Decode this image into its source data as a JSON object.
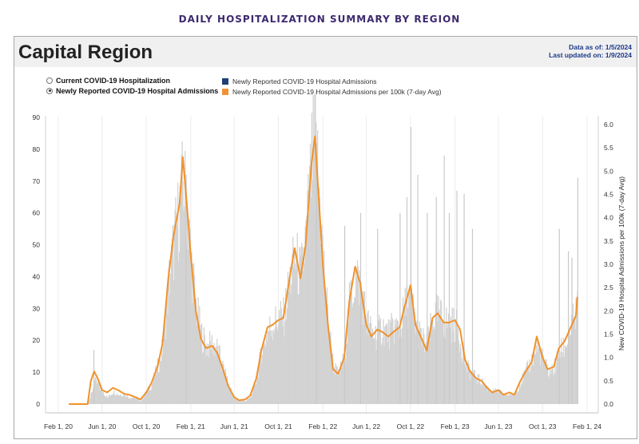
{
  "page": {
    "heading": "DAILY HOSPITALIZATION SUMMARY BY REGION"
  },
  "panel": {
    "title": "Capital Region",
    "data_as_of": "Data as of: 1/5/2024",
    "last_updated": "Last updated on: 1/9/2024"
  },
  "view_options": [
    {
      "label": "Current COVID-19 Hospitalization",
      "selected": false
    },
    {
      "label": "Newly Reported COVID-19 Hospital Admissions",
      "selected": true
    }
  ],
  "legend": [
    {
      "label": "Newly Reported COVID-19 Hospital Admissions",
      "color": "#1f3f7a"
    },
    {
      "label": "Newly Reported COVID-19 Hospital Admissions per 100k (7-day Avg)",
      "color": "#f0923a"
    }
  ],
  "chart_data": {
    "type": "bar+line",
    "x_ticks": [
      "Feb 1, 20",
      "Jun 1, 20",
      "Oct 1, 20",
      "Feb 1, 21",
      "Jun 1, 21",
      "Oct 1, 21",
      "Feb 1, 22",
      "Jun 1, 22",
      "Oct 1, 22",
      "Feb 1, 23",
      "Jun 1, 23",
      "Oct 1, 23",
      "Feb 1, 24"
    ],
    "xlim": [
      "Feb 1, 20",
      "Feb 1, 24"
    ],
    "y_left": {
      "label": "",
      "ylim": [
        0,
        90
      ],
      "ticks": [
        "0",
        "10",
        "20",
        "30",
        "40",
        "50",
        "60",
        "70",
        "80",
        "90"
      ]
    },
    "y_right": {
      "label": "New COVID-19 Hospital Admissions per 100k (7-day Avg)",
      "ylim": [
        0,
        6.0
      ],
      "ticks": [
        "0.0",
        "0.5",
        "1.0",
        "1.5",
        "2.0",
        "2.5",
        "3.0",
        "3.5",
        "4.0",
        "4.5",
        "5.0",
        "5.5",
        "6.0"
      ]
    },
    "grid": "vertical",
    "bar_color": "#d3d3d3",
    "line_color": "#f0922c",
    "series": [
      {
        "name": "Newly Reported COVID-19 Hospital Admissions",
        "axis": "left",
        "points": [
          [
            "2020-03-01",
            0
          ],
          [
            "2020-04-01",
            0
          ],
          [
            "2020-04-20",
            0
          ],
          [
            "2020-05-01",
            3
          ],
          [
            "2020-05-10",
            7
          ],
          [
            "2020-05-20",
            6
          ],
          [
            "2020-06-01",
            4
          ],
          [
            "2020-06-15",
            2
          ],
          [
            "2020-07-01",
            4
          ],
          [
            "2020-07-15",
            3
          ],
          [
            "2020-08-01",
            3
          ],
          [
            "2020-08-15",
            2
          ],
          [
            "2020-09-01",
            2
          ],
          [
            "2020-09-15",
            1
          ],
          [
            "2020-10-01",
            4
          ],
          [
            "2020-10-15",
            6
          ],
          [
            "2020-11-01",
            12
          ],
          [
            "2020-11-15",
            18
          ],
          [
            "2020-12-01",
            38
          ],
          [
            "2020-12-15",
            50
          ],
          [
            "2021-01-01",
            62
          ],
          [
            "2021-01-10",
            70
          ],
          [
            "2021-01-20",
            62
          ],
          [
            "2021-02-01",
            45
          ],
          [
            "2021-02-15",
            30
          ],
          [
            "2021-03-01",
            22
          ],
          [
            "2021-03-15",
            18
          ],
          [
            "2021-04-01",
            19
          ],
          [
            "2021-04-15",
            17
          ],
          [
            "2021-05-01",
            11
          ],
          [
            "2021-05-15",
            6
          ],
          [
            "2021-06-01",
            2
          ],
          [
            "2021-06-15",
            1
          ],
          [
            "2021-07-01",
            1
          ],
          [
            "2021-07-15",
            2
          ],
          [
            "2021-08-01",
            8
          ],
          [
            "2021-08-15",
            17
          ],
          [
            "2021-09-01",
            23
          ],
          [
            "2021-09-15",
            25
          ],
          [
            "2021-10-01",
            27
          ],
          [
            "2021-10-15",
            27
          ],
          [
            "2021-11-01",
            39
          ],
          [
            "2021-11-15",
            46
          ],
          [
            "2021-12-01",
            40
          ],
          [
            "2021-12-15",
            52
          ],
          [
            "2022-01-01",
            76
          ],
          [
            "2022-01-10",
            83
          ],
          [
            "2022-01-20",
            67
          ],
          [
            "2022-02-01",
            45
          ],
          [
            "2022-02-15",
            25
          ],
          [
            "2022-03-01",
            12
          ],
          [
            "2022-03-15",
            9
          ],
          [
            "2022-04-01",
            15
          ],
          [
            "2022-04-15",
            32
          ],
          [
            "2022-05-01",
            40
          ],
          [
            "2022-05-15",
            37
          ],
          [
            "2022-06-01",
            26
          ],
          [
            "2022-06-15",
            22
          ],
          [
            "2022-07-01",
            22
          ],
          [
            "2022-07-15",
            24
          ],
          [
            "2022-08-01",
            22
          ],
          [
            "2022-08-15",
            24
          ],
          [
            "2022-09-01",
            24
          ],
          [
            "2022-09-15",
            30
          ],
          [
            "2022-10-01",
            33
          ],
          [
            "2022-10-15",
            24
          ],
          [
            "2022-11-01",
            20
          ],
          [
            "2022-11-15",
            18
          ],
          [
            "2022-12-01",
            27
          ],
          [
            "2022-12-15",
            28
          ],
          [
            "2023-01-01",
            26
          ],
          [
            "2023-01-15",
            25
          ],
          [
            "2023-02-01",
            25
          ],
          [
            "2023-02-15",
            20
          ],
          [
            "2023-03-01",
            12
          ],
          [
            "2023-03-15",
            10
          ],
          [
            "2023-04-01",
            8
          ],
          [
            "2023-04-15",
            7
          ],
          [
            "2023-05-01",
            5
          ],
          [
            "2023-05-15",
            4
          ],
          [
            "2023-06-01",
            4
          ],
          [
            "2023-06-15",
            3
          ],
          [
            "2023-07-01",
            3
          ],
          [
            "2023-07-15",
            3
          ],
          [
            "2023-08-01",
            7
          ],
          [
            "2023-08-15",
            10
          ],
          [
            "2023-09-01",
            14
          ],
          [
            "2023-09-15",
            18
          ],
          [
            "2023-10-01",
            14
          ],
          [
            "2023-10-15",
            10
          ],
          [
            "2023-11-01",
            11
          ],
          [
            "2023-11-15",
            16
          ],
          [
            "2023-12-01",
            18
          ],
          [
            "2023-12-15",
            23
          ],
          [
            "2024-01-01",
            28
          ],
          [
            "2024-01-05",
            32
          ]
        ],
        "spikes": [
          [
            "2020-05-08",
            17
          ],
          [
            "2021-01-18",
            72
          ],
          [
            "2022-01-13",
            82
          ],
          [
            "2022-04-01",
            56
          ],
          [
            "2022-05-15",
            60
          ],
          [
            "2022-07-01",
            55
          ],
          [
            "2022-09-01",
            60
          ],
          [
            "2022-09-20",
            65
          ],
          [
            "2022-10-01",
            87
          ],
          [
            "2022-10-20",
            72
          ],
          [
            "2022-11-15",
            60
          ],
          [
            "2022-12-10",
            65
          ],
          [
            "2023-01-01",
            78
          ],
          [
            "2023-01-15",
            60
          ],
          [
            "2023-02-05",
            67
          ],
          [
            "2023-02-25",
            66
          ],
          [
            "2023-03-20",
            55
          ],
          [
            "2023-11-15",
            55
          ],
          [
            "2023-12-10",
            48
          ],
          [
            "2023-12-20",
            46
          ],
          [
            "2024-01-05",
            71
          ]
        ]
      },
      {
        "name": "Newly Reported COVID-19 Hospital Admissions per 100k (7-day Avg)",
        "axis": "right",
        "points": [
          [
            "2020-03-01",
            0
          ],
          [
            "2020-04-01",
            0
          ],
          [
            "2020-04-22",
            0
          ],
          [
            "2020-05-01",
            0.5
          ],
          [
            "2020-05-10",
            0.7
          ],
          [
            "2020-05-20",
            0.55
          ],
          [
            "2020-06-01",
            0.3
          ],
          [
            "2020-06-15",
            0.25
          ],
          [
            "2020-07-01",
            0.35
          ],
          [
            "2020-07-15",
            0.3
          ],
          [
            "2020-08-01",
            0.22
          ],
          [
            "2020-08-15",
            0.2
          ],
          [
            "2020-09-01",
            0.15
          ],
          [
            "2020-09-15",
            0.1
          ],
          [
            "2020-10-01",
            0.25
          ],
          [
            "2020-10-15",
            0.45
          ],
          [
            "2020-11-01",
            0.8
          ],
          [
            "2020-11-15",
            1.3
          ],
          [
            "2020-12-01",
            2.7
          ],
          [
            "2020-12-15",
            3.6
          ],
          [
            "2021-01-01",
            4.3
          ],
          [
            "2021-01-10",
            5.3
          ],
          [
            "2021-01-20",
            4.4
          ],
          [
            "2021-02-01",
            3.2
          ],
          [
            "2021-02-15",
            2.0
          ],
          [
            "2021-03-01",
            1.4
          ],
          [
            "2021-03-15",
            1.2
          ],
          [
            "2021-04-01",
            1.25
          ],
          [
            "2021-04-15",
            1.1
          ],
          [
            "2021-05-01",
            0.75
          ],
          [
            "2021-05-15",
            0.4
          ],
          [
            "2021-06-01",
            0.15
          ],
          [
            "2021-06-15",
            0.08
          ],
          [
            "2021-07-01",
            0.1
          ],
          [
            "2021-07-15",
            0.18
          ],
          [
            "2021-08-01",
            0.55
          ],
          [
            "2021-08-15",
            1.15
          ],
          [
            "2021-09-01",
            1.65
          ],
          [
            "2021-09-15",
            1.7
          ],
          [
            "2021-10-01",
            1.8
          ],
          [
            "2021-10-15",
            1.85
          ],
          [
            "2021-11-01",
            2.7
          ],
          [
            "2021-11-15",
            3.35
          ],
          [
            "2021-12-01",
            2.7
          ],
          [
            "2021-12-15",
            3.4
          ],
          [
            "2022-01-01",
            5.2
          ],
          [
            "2022-01-10",
            5.75
          ],
          [
            "2022-01-20",
            4.5
          ],
          [
            "2022-02-01",
            3.0
          ],
          [
            "2022-02-15",
            1.7
          ],
          [
            "2022-03-01",
            0.75
          ],
          [
            "2022-03-15",
            0.65
          ],
          [
            "2022-04-01",
            1.0
          ],
          [
            "2022-04-15",
            2.2
          ],
          [
            "2022-05-01",
            2.95
          ],
          [
            "2022-05-15",
            2.6
          ],
          [
            "2022-06-01",
            1.7
          ],
          [
            "2022-06-15",
            1.45
          ],
          [
            "2022-07-01",
            1.6
          ],
          [
            "2022-07-15",
            1.55
          ],
          [
            "2022-08-01",
            1.45
          ],
          [
            "2022-08-15",
            1.55
          ],
          [
            "2022-09-01",
            1.65
          ],
          [
            "2022-09-15",
            2.1
          ],
          [
            "2022-10-01",
            2.55
          ],
          [
            "2022-10-15",
            1.7
          ],
          [
            "2022-11-01",
            1.4
          ],
          [
            "2022-11-15",
            1.15
          ],
          [
            "2022-12-01",
            1.85
          ],
          [
            "2022-12-15",
            1.95
          ],
          [
            "2023-01-01",
            1.75
          ],
          [
            "2023-01-15",
            1.75
          ],
          [
            "2023-02-01",
            1.8
          ],
          [
            "2023-02-15",
            1.6
          ],
          [
            "2023-03-01",
            0.95
          ],
          [
            "2023-03-15",
            0.7
          ],
          [
            "2023-04-01",
            0.55
          ],
          [
            "2023-04-15",
            0.5
          ],
          [
            "2023-05-01",
            0.35
          ],
          [
            "2023-05-15",
            0.25
          ],
          [
            "2023-06-01",
            0.3
          ],
          [
            "2023-06-15",
            0.2
          ],
          [
            "2023-07-01",
            0.25
          ],
          [
            "2023-07-15",
            0.2
          ],
          [
            "2023-08-01",
            0.5
          ],
          [
            "2023-08-15",
            0.7
          ],
          [
            "2023-09-01",
            0.9
          ],
          [
            "2023-09-15",
            1.45
          ],
          [
            "2023-10-01",
            1.0
          ],
          [
            "2023-10-15",
            0.75
          ],
          [
            "2023-11-01",
            0.8
          ],
          [
            "2023-11-15",
            1.2
          ],
          [
            "2023-12-01",
            1.35
          ],
          [
            "2023-12-15",
            1.6
          ],
          [
            "2024-01-01",
            1.9
          ],
          [
            "2024-01-05",
            2.3
          ]
        ]
      }
    ]
  }
}
